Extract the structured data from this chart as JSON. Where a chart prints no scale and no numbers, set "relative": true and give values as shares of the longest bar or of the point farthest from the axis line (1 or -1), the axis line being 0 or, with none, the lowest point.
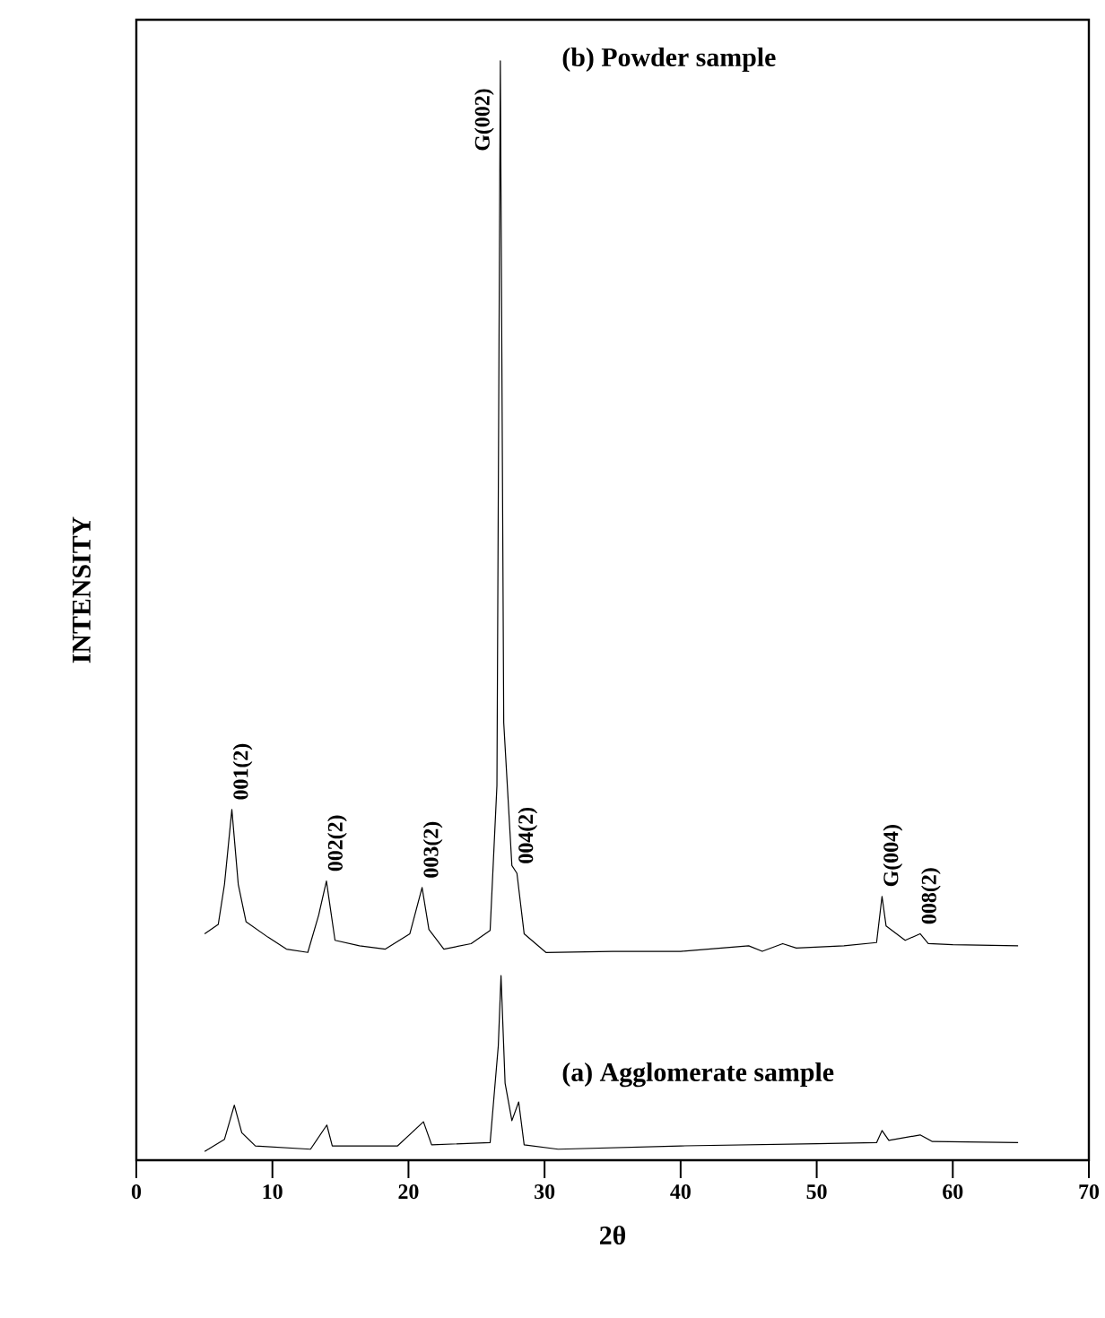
{
  "chart_data": {
    "type": "line",
    "xlabel": "2θ",
    "ylabel": "INTENSITY",
    "relative": true,
    "xlim": [
      0,
      70
    ],
    "xticks": [
      0,
      10,
      20,
      30,
      40,
      50,
      60,
      70
    ],
    "series": [
      {
        "name": "(b) Powder sample",
        "color": "#000000",
        "x": [
          5.02,
          6.02,
          6.48,
          7.02,
          7.49,
          8.06,
          9.66,
          11.03,
          12.6,
          13.4,
          13.97,
          14.6,
          16.4,
          18.3,
          20.1,
          21.0,
          21.5,
          22.6,
          24.6,
          26.0,
          26.5,
          26.75,
          27.0,
          27.6,
          27.97,
          28.5,
          30.1,
          35,
          40,
          45,
          46,
          47.5,
          48.5,
          52,
          54.4,
          54.8,
          55.1,
          56.5,
          57.6,
          58.2,
          60,
          64.8
        ],
        "values": [
          0.206,
          0.2145,
          0.251,
          0.319,
          0.251,
          0.217,
          0.203,
          0.192,
          0.189,
          0.223,
          0.254,
          0.2,
          0.195,
          0.192,
          0.206,
          0.248,
          0.21,
          0.192,
          0.197,
          0.209,
          0.341,
          1.0,
          0.398,
          0.268,
          0.261,
          0.206,
          0.189,
          0.19,
          0.19,
          0.195,
          0.19,
          0.197,
          0.193,
          0.195,
          0.198,
          0.24,
          0.213,
          0.2,
          0.206,
          0.197,
          0.196,
          0.195
        ]
      },
      {
        "name": "(a) Agglomerate sample",
        "color": "#000000",
        "x": [
          5.02,
          6.48,
          7.2,
          7.75,
          8.75,
          12.8,
          14.0,
          14.4,
          19.2,
          21.1,
          21.7,
          26.0,
          26.6,
          26.8,
          27.1,
          27.6,
          28.1,
          28.5,
          31.0,
          40,
          50,
          54.4,
          54.8,
          55.3,
          57.6,
          58.5,
          64.8
        ],
        "values": [
          0.008,
          0.019,
          0.05,
          0.025,
          0.013,
          0.01,
          0.032,
          0.013,
          0.013,
          0.035,
          0.014,
          0.016,
          0.104,
          0.168,
          0.07,
          0.036,
          0.053,
          0.014,
          0.01,
          0.013,
          0.015,
          0.016,
          0.027,
          0.018,
          0.023,
          0.017,
          0.016
        ]
      }
    ],
    "annotations": [
      {
        "text": "001(2)",
        "x": 7.02,
        "y": 0.319
      },
      {
        "text": "002(2)",
        "x": 13.97,
        "y": 0.254
      },
      {
        "text": "003(2)",
        "x": 21.0,
        "y": 0.248
      },
      {
        "text": "G(002)",
        "x": 26.75,
        "y": 1.0
      },
      {
        "text": "004(2)",
        "x": 27.97,
        "y": 0.261
      },
      {
        "text": "G(004)",
        "x": 54.8,
        "y": 0.24
      },
      {
        "text": "008(2)",
        "x": 57.6,
        "y": 0.206
      }
    ]
  }
}
